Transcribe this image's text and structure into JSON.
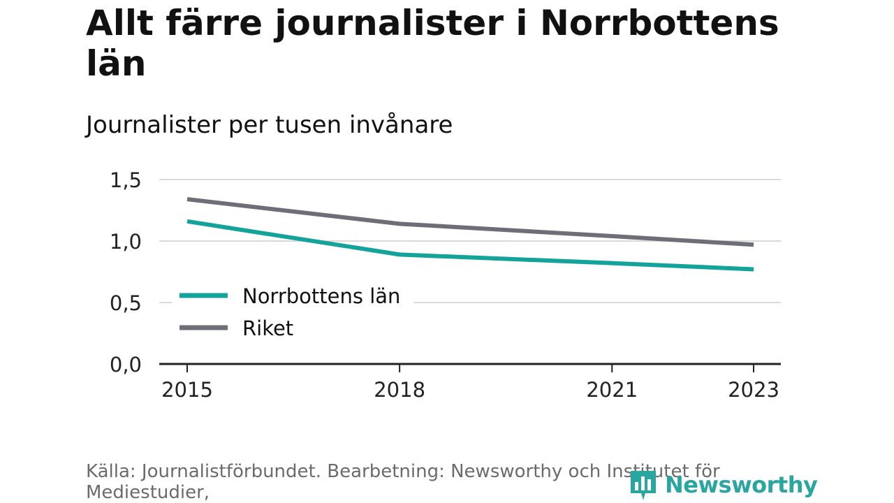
{
  "header": {
    "title": "Allt färre journalister i Norrbottens län",
    "subtitle": "Journalister per tusen invånare"
  },
  "chart_data": {
    "type": "line",
    "title": "Allt färre journalister i Norrbottens län",
    "subtitle": "Journalister per tusen invånare",
    "xlabel": "",
    "ylabel": "",
    "x": [
      2015,
      2018,
      2021,
      2023
    ],
    "x_ticks": [
      "2015",
      "2018",
      "2021",
      "2023"
    ],
    "y_ticks": [
      "0,0",
      "0,5",
      "1,0",
      "1,5"
    ],
    "ylim": [
      0,
      1.5
    ],
    "grid": true,
    "legend_position": "left, inside plot",
    "series": [
      {
        "name": "Norrbottens län",
        "color": "#14a39a",
        "values": [
          1.16,
          0.89,
          0.82,
          0.77
        ]
      },
      {
        "name": "Riket",
        "color": "#6e6e78",
        "values": [
          1.34,
          1.14,
          1.04,
          0.97
        ]
      }
    ]
  },
  "footer": {
    "source": "Källa: Journalistförbundet. Bearbetning: Newsworthy och Institutet för Mediestudier,"
  },
  "logo": {
    "text": "Newsworthy",
    "icon": "newsworthy-chart-icon",
    "color": "#2aa6a0"
  }
}
